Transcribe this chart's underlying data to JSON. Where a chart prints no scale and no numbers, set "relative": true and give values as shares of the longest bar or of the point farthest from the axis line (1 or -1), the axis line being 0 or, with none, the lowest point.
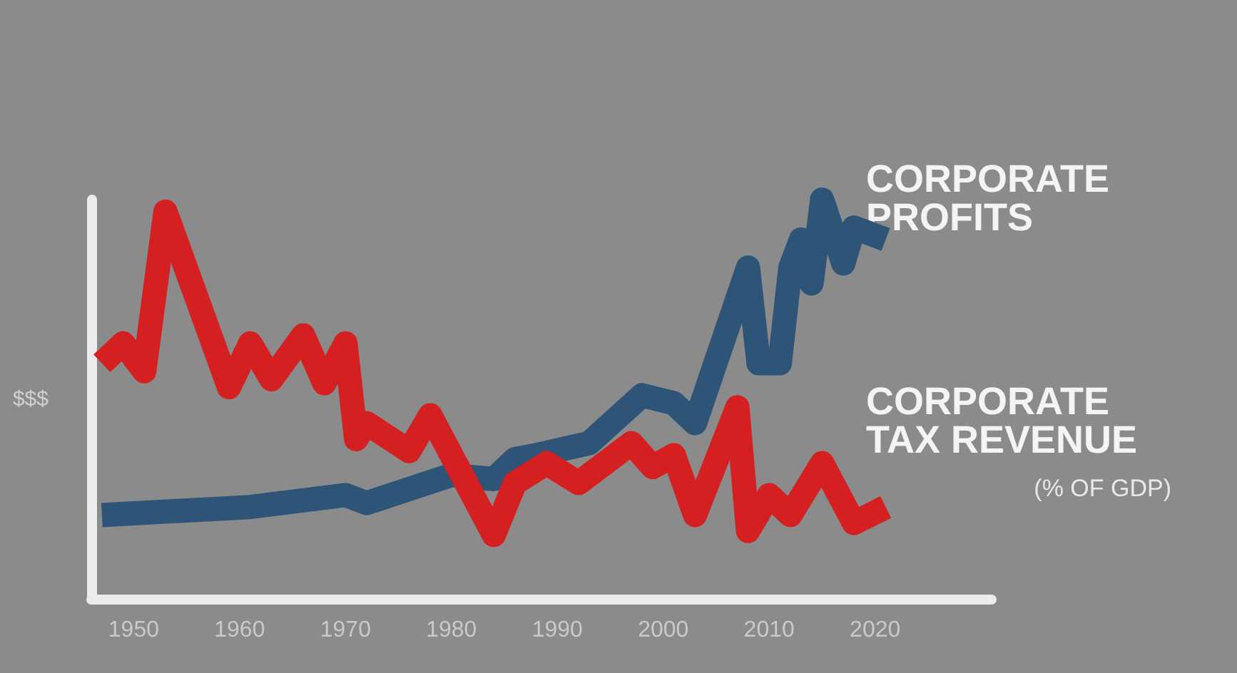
{
  "chart_data": {
    "type": "line",
    "ylabel": "$$$",
    "relative": true,
    "xlim": [
      1946,
      2031
    ],
    "xticks": [
      1950,
      1960,
      1970,
      1980,
      1990,
      2000,
      2010,
      2020
    ],
    "grid": false,
    "marker": "none",
    "series": [
      {
        "name": "CORPORATE PROFITS",
        "color": "#2e5478",
        "x": [
          1947,
          1961,
          1970,
          1972,
          1980,
          1984,
          1986,
          1988,
          1993,
          1998,
          2001,
          2003,
          2008,
          2009,
          2011,
          2012,
          2013,
          2014,
          2015,
          2017,
          2018,
          2021
        ],
        "values": [
          0.21,
          0.23,
          0.26,
          0.24,
          0.31,
          0.3,
          0.35,
          0.36,
          0.39,
          0.51,
          0.49,
          0.44,
          0.83,
          0.59,
          0.59,
          0.83,
          0.9,
          0.79,
          1.0,
          0.84,
          0.93,
          0.9
        ]
      },
      {
        "name": "CORPORATE TAX REVENUE",
        "color": "#d42020",
        "x": [
          1947,
          1949,
          1951,
          1953,
          1959,
          1961,
          1963,
          1966,
          1968,
          1970,
          1971,
          1972,
          1976,
          1978,
          1984,
          1986,
          1989,
          1992,
          1997,
          1999,
          2001,
          2003,
          2007,
          2008,
          2010,
          2012,
          2015,
          2018,
          2021
        ],
        "values": [
          0.59,
          0.64,
          0.57,
          0.97,
          0.53,
          0.64,
          0.55,
          0.66,
          0.54,
          0.64,
          0.4,
          0.44,
          0.37,
          0.46,
          0.16,
          0.29,
          0.34,
          0.29,
          0.39,
          0.33,
          0.36,
          0.21,
          0.48,
          0.17,
          0.26,
          0.21,
          0.34,
          0.19,
          0.23
        ]
      }
    ],
    "annotations": [
      "(% OF GDP)"
    ]
  }
}
